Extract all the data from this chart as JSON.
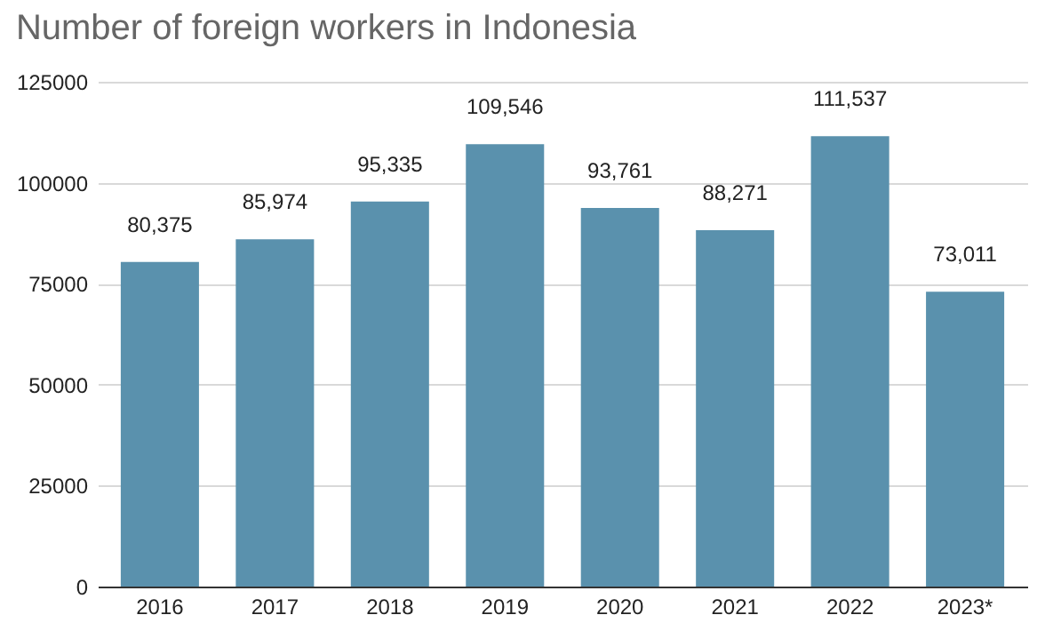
{
  "chart_data": {
    "type": "bar",
    "title": "Number of foreign workers in Indonesia",
    "categories": [
      "2016",
      "2017",
      "2018",
      "2019",
      "2020",
      "2021",
      "2022",
      "2023*"
    ],
    "values": [
      80375,
      85974,
      95335,
      109546,
      93761,
      88271,
      111537,
      73011
    ],
    "color": "#5a91ad",
    "ylim": [
      0,
      125000
    ],
    "yticks": [
      0,
      25000,
      50000,
      75000,
      100000,
      125000
    ],
    "value_labels": [
      "80,375",
      "85,974",
      "95,335",
      "109,546",
      "93,761",
      "88,271",
      "111,537",
      "73,011"
    ],
    "grid": "y"
  }
}
